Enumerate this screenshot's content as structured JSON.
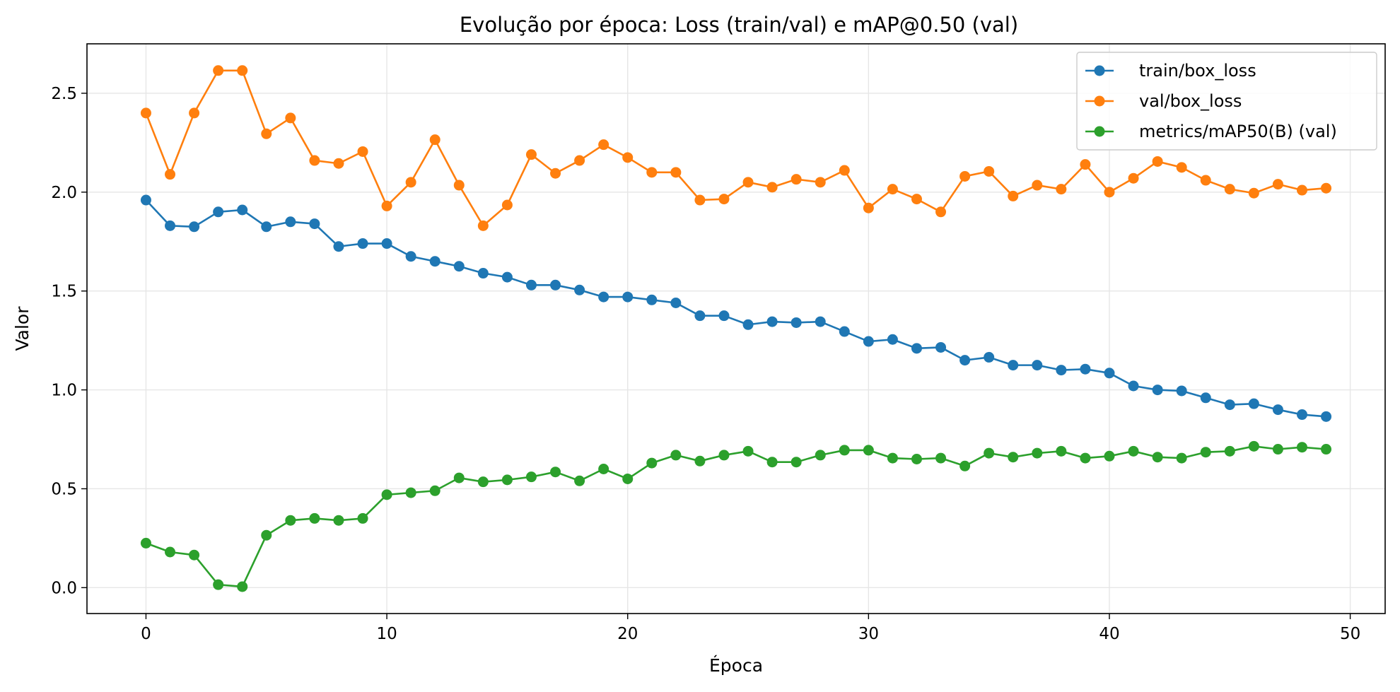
{
  "chart_data": {
    "type": "line",
    "title": "Evolução por época: Loss (train/val) e mAP@0.50 (val)",
    "xlabel": "Época",
    "ylabel": "Valor",
    "xlim": [
      -2.45,
      51.45
    ],
    "ylim": [
      -0.131,
      2.75
    ],
    "xticks": [
      0,
      10,
      20,
      30,
      40,
      50
    ],
    "yticks": [
      0.0,
      0.5,
      1.0,
      1.5,
      2.0,
      2.5
    ],
    "xtick_labels": [
      "0",
      "10",
      "20",
      "30",
      "40",
      "50"
    ],
    "ytick_labels": [
      "0.0",
      "0.5",
      "1.0",
      "1.5",
      "2.0",
      "2.5"
    ],
    "grid": true,
    "legend_position": "top-right",
    "x": [
      0,
      1,
      2,
      3,
      4,
      5,
      6,
      7,
      8,
      9,
      10,
      11,
      12,
      13,
      14,
      15,
      16,
      17,
      18,
      19,
      20,
      21,
      22,
      23,
      24,
      25,
      26,
      27,
      28,
      29,
      30,
      31,
      32,
      33,
      34,
      35,
      36,
      37,
      38,
      39,
      40,
      41,
      42,
      43,
      44,
      45,
      46,
      47,
      48,
      49
    ],
    "series": [
      {
        "name": "train/box_loss",
        "color": "#1f77b4",
        "values": [
          1.96,
          1.83,
          1.825,
          1.9,
          1.91,
          1.825,
          1.85,
          1.84,
          1.725,
          1.74,
          1.74,
          1.675,
          1.65,
          1.625,
          1.59,
          1.57,
          1.53,
          1.53,
          1.505,
          1.47,
          1.47,
          1.455,
          1.44,
          1.375,
          1.375,
          1.33,
          1.345,
          1.34,
          1.345,
          1.295,
          1.245,
          1.255,
          1.21,
          1.215,
          1.15,
          1.165,
          1.125,
          1.125,
          1.1,
          1.105,
          1.085,
          1.02,
          1.0,
          0.995,
          0.96,
          0.925,
          0.93,
          0.9,
          0.875,
          0.865
        ]
      },
      {
        "name": "val/box_loss",
        "color": "#ff7f0e",
        "values": [
          2.4,
          2.09,
          2.4,
          2.615,
          2.615,
          2.295,
          2.375,
          2.16,
          2.145,
          2.205,
          1.93,
          2.05,
          2.265,
          2.035,
          1.83,
          1.935,
          2.19,
          2.095,
          2.16,
          2.24,
          2.175,
          2.1,
          2.1,
          1.96,
          1.965,
          2.05,
          2.025,
          2.065,
          2.05,
          2.11,
          1.92,
          2.015,
          1.965,
          1.9,
          2.08,
          2.105,
          1.98,
          2.035,
          2.015,
          2.14,
          2.0,
          2.07,
          2.155,
          2.125,
          2.06,
          2.015,
          1.995,
          2.04,
          2.01,
          2.02
        ]
      },
      {
        "name": "metrics/mAP50(B) (val)",
        "color": "#2ca02c",
        "values": [
          0.225,
          0.18,
          0.165,
          0.015,
          0.005,
          0.265,
          0.34,
          0.35,
          0.34,
          0.35,
          0.47,
          0.48,
          0.49,
          0.555,
          0.535,
          0.545,
          0.56,
          0.585,
          0.54,
          0.6,
          0.55,
          0.63,
          0.67,
          0.64,
          0.67,
          0.69,
          0.635,
          0.635,
          0.67,
          0.695,
          0.695,
          0.655,
          0.65,
          0.655,
          0.615,
          0.68,
          0.66,
          0.68,
          0.69,
          0.655,
          0.665,
          0.69,
          0.66,
          0.655,
          0.685,
          0.69,
          0.715,
          0.7,
          0.71,
          0.7
        ]
      }
    ]
  }
}
